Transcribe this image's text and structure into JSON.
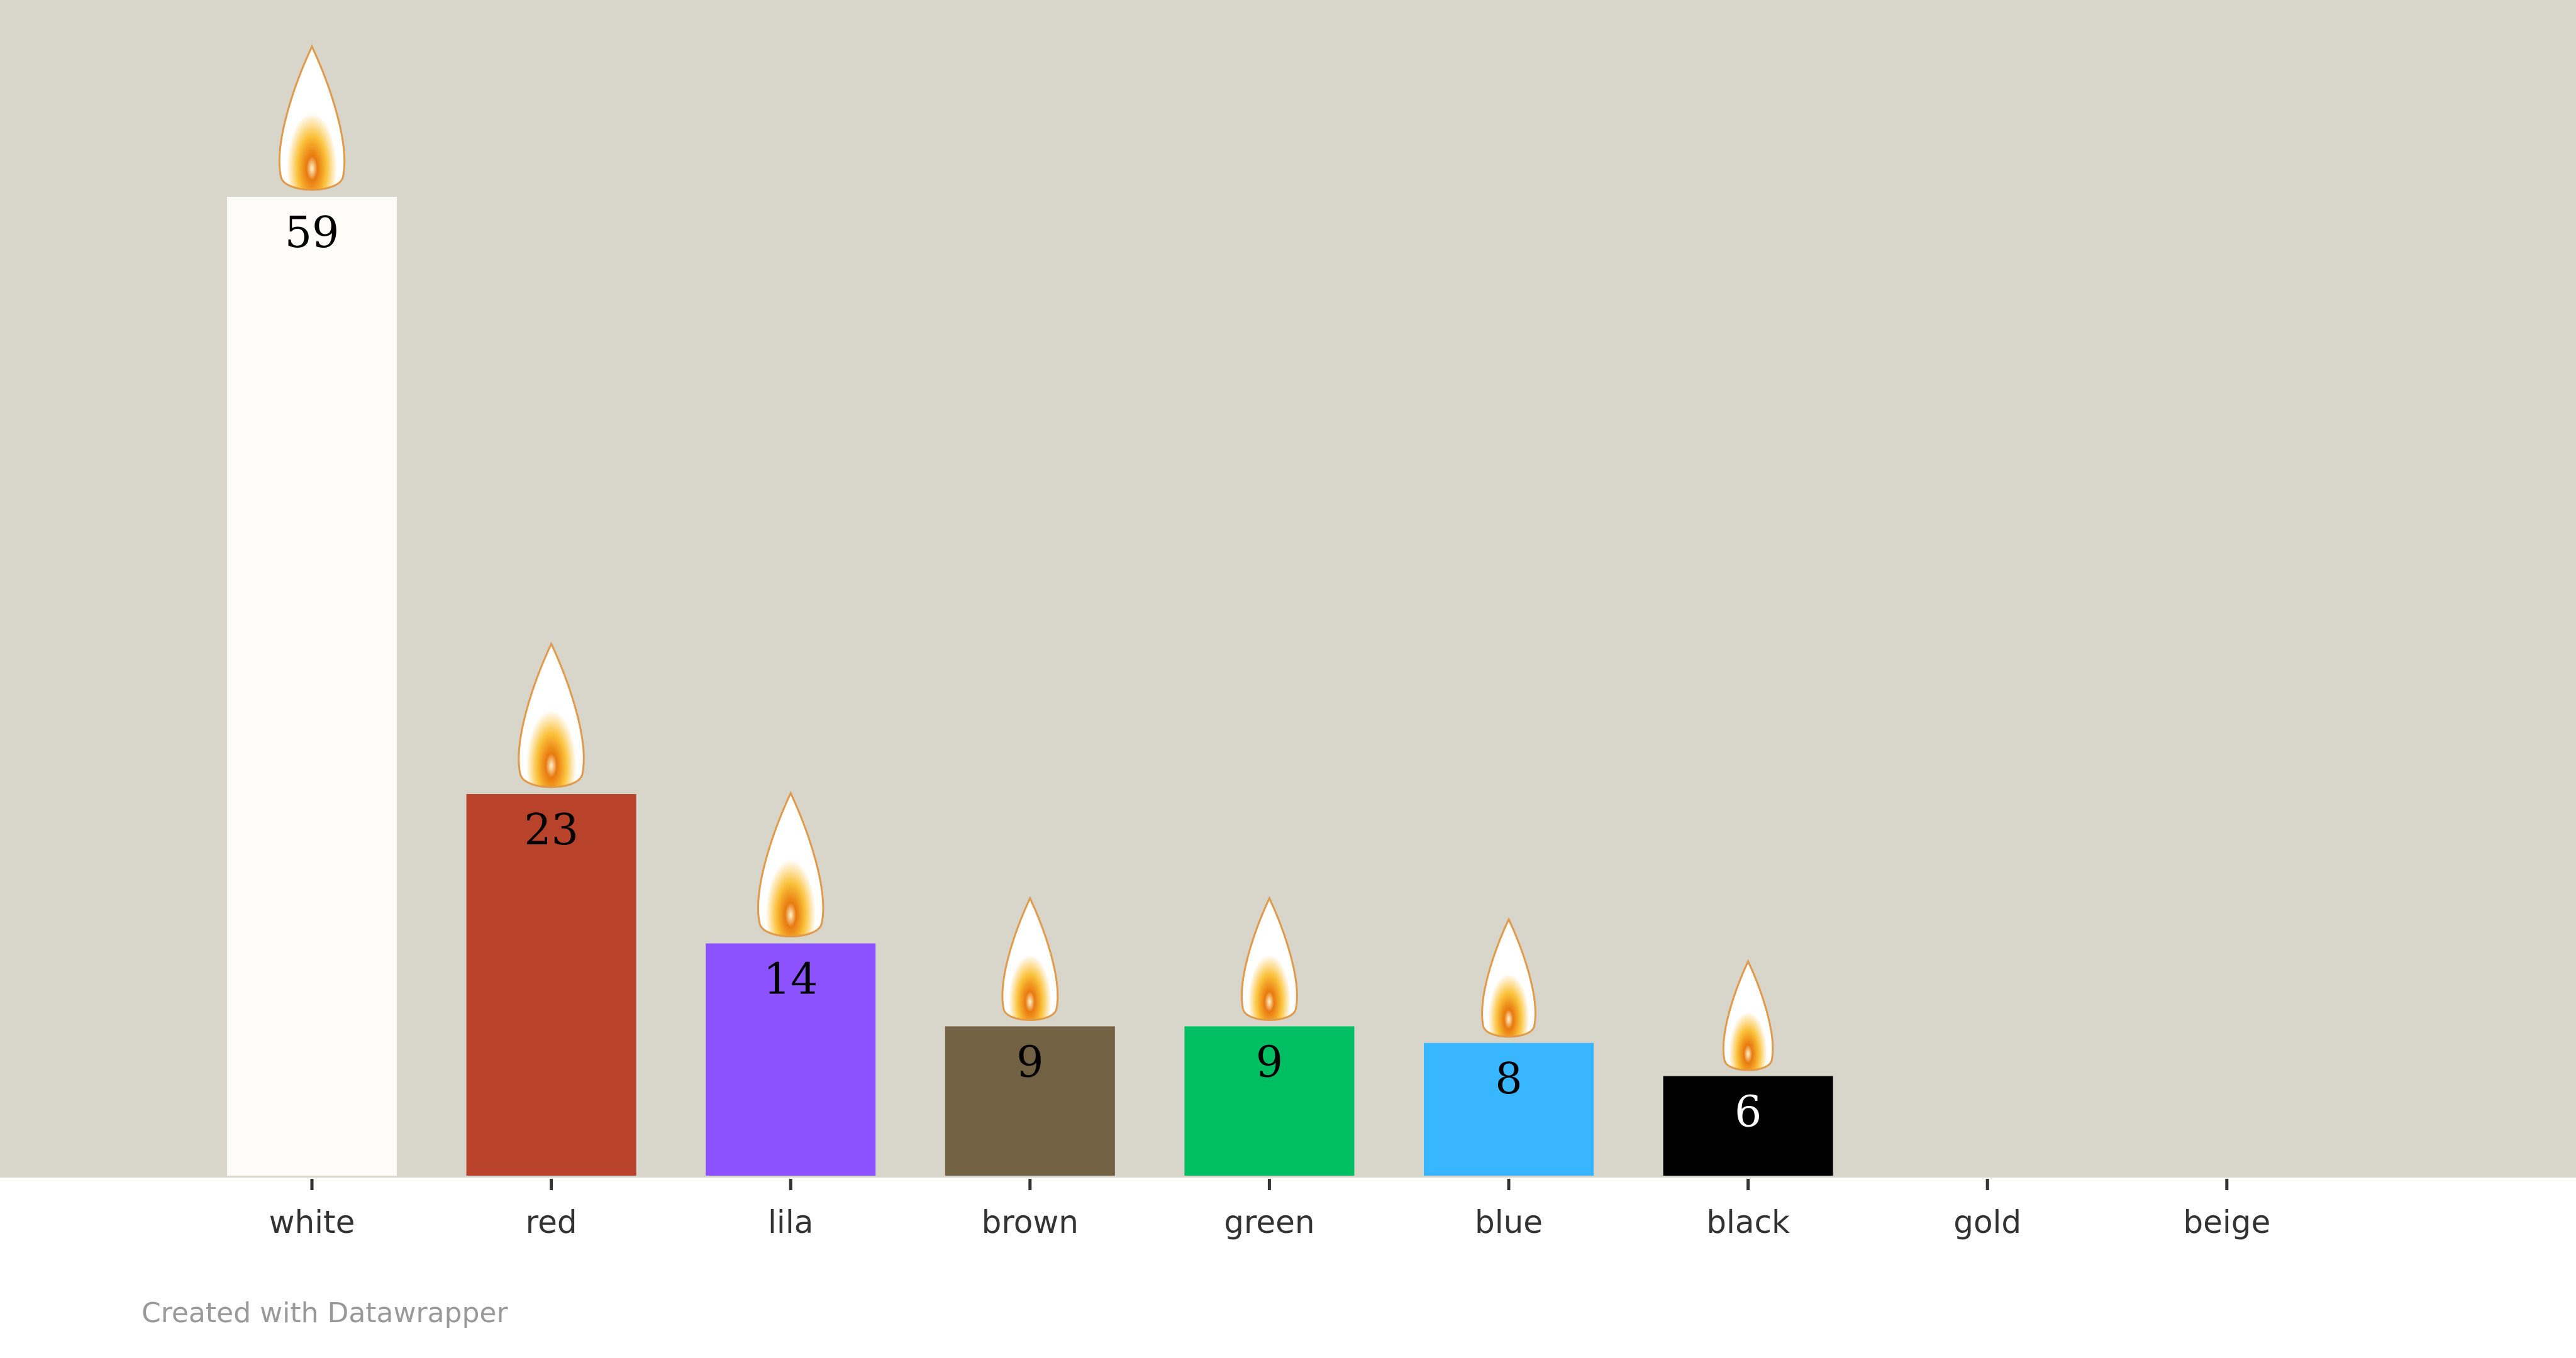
{
  "chart_data": {
    "type": "bar",
    "categories": [
      "white",
      "red",
      "lila",
      "brown",
      "green",
      "blue",
      "black",
      "gold",
      "beige"
    ],
    "values": [
      59,
      23,
      14,
      9,
      9,
      8,
      6,
      0,
      0
    ],
    "value_labels": [
      "59",
      "23",
      "14",
      "9",
      "9",
      "8",
      "6",
      "",
      ""
    ],
    "colors": [
      "#fdfcf8",
      "#b8432a",
      "#8c52ff",
      "#736144",
      "#00bf63",
      "#38b6ff",
      "#000000",
      "#d4af37",
      "#f5f0dc"
    ],
    "label_colors": [
      "#000000",
      "#000000",
      "#000000",
      "#000000",
      "#000000",
      "#000000",
      "#ffffff",
      "#000000",
      "#000000"
    ],
    "background": "#d8d6cb",
    "decoration": "candle-flame-icon on top of each bar",
    "ylim": [
      0,
      70
    ],
    "grid": false,
    "xlabel": "",
    "ylabel": ""
  },
  "footer": {
    "credit": "Created with Datawrapper"
  }
}
